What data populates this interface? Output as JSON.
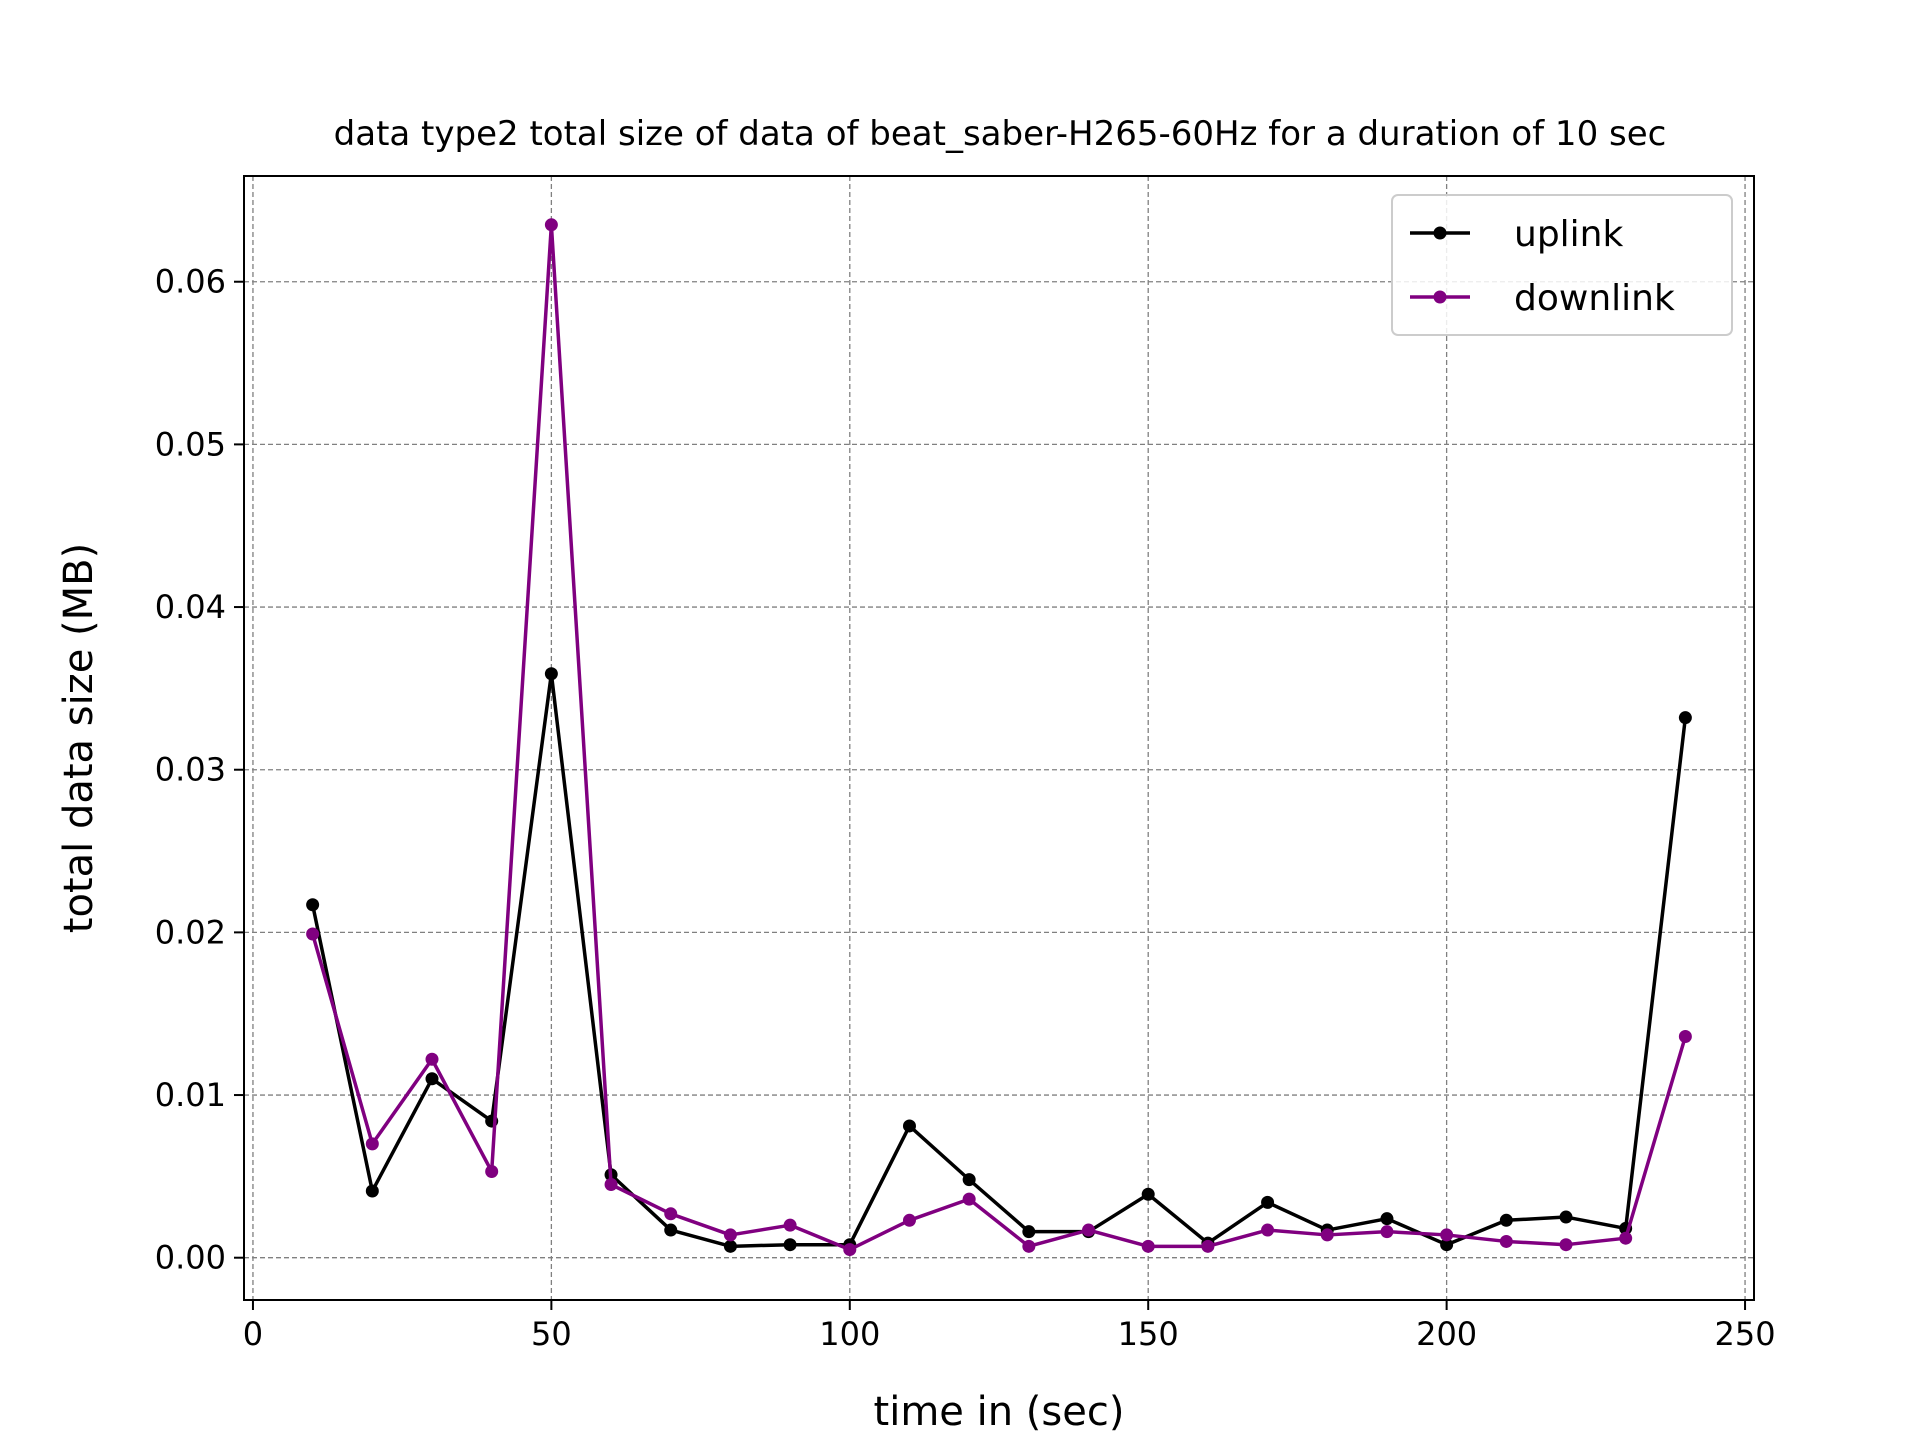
{
  "chart_data": {
    "type": "line",
    "title": "data type2 total size of data of beat_saber-H265-60Hz for a duration of 10 sec",
    "xlabel": "time in (sec)",
    "ylabel": "total data size (MB)",
    "xlim": [
      -1.5,
      251.5
    ],
    "ylim": [
      -0.0026,
      0.0665
    ],
    "xticks": [
      0,
      50,
      100,
      150,
      200,
      250
    ],
    "xtick_labels": [
      "0",
      "50",
      "100",
      "150",
      "200",
      "250"
    ],
    "yticks": [
      0,
      0.01,
      0.02,
      0.03,
      0.04,
      0.05,
      0.06
    ],
    "ytick_labels": [
      "0.00",
      "0.01",
      "0.02",
      "0.03",
      "0.04",
      "0.05",
      "0.06"
    ],
    "grid": true,
    "legend_position": "top-right",
    "x": [
      10,
      20,
      30,
      40,
      50,
      60,
      70,
      80,
      90,
      100,
      110,
      120,
      130,
      140,
      150,
      160,
      170,
      180,
      190,
      200,
      210,
      220,
      230,
      240
    ],
    "series": [
      {
        "name": "uplink",
        "color": "#000000",
        "values": [
          0.0217,
          0.0041,
          0.011,
          0.0084,
          0.0359,
          0.0051,
          0.0017,
          0.0007,
          0.0008,
          0.0008,
          0.0081,
          0.0048,
          0.0016,
          0.0016,
          0.0039,
          0.0009,
          0.0034,
          0.0017,
          0.0024,
          0.0008,
          0.0023,
          0.0025,
          0.0018,
          0.0332
        ]
      },
      {
        "name": "downlink",
        "color": "#800080",
        "values": [
          0.0199,
          0.007,
          0.0122,
          0.0053,
          0.0635,
          0.0045,
          0.0027,
          0.0014,
          0.002,
          0.0005,
          0.0023,
          0.0036,
          0.0007,
          0.0017,
          0.0007,
          0.0007,
          0.0017,
          0.0014,
          0.0016,
          0.0014,
          0.001,
          0.0008,
          0.0012,
          0.0136
        ]
      }
    ]
  }
}
